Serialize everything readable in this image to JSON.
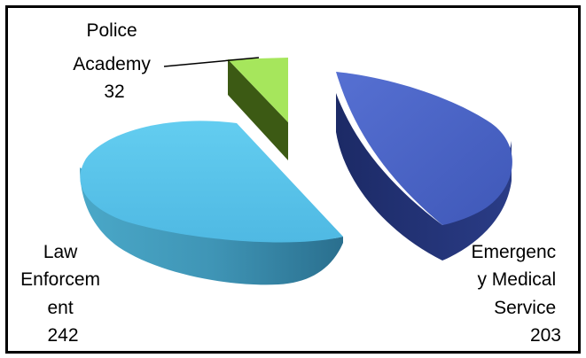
{
  "chart_data": {
    "type": "pie",
    "style": "3d-exploded",
    "categories": [
      "Law Enforcement",
      "Emergency Medical Service",
      "Police Academy"
    ],
    "values": [
      242,
      203,
      32
    ],
    "colors": {
      "Law Enforcement": "#5bc4ea",
      "Emergency Medical Service": "#4a64c8",
      "Police Academy": "#a6e65c"
    },
    "labels": [
      {
        "category": "Police Academy",
        "lines": [
          "Police",
          "Academy",
          "32"
        ]
      },
      {
        "category": "Law Enforcement",
        "lines": [
          "Law",
          "Enforcem",
          "ent",
          "242"
        ]
      },
      {
        "category": "Emergency Medical Service",
        "lines": [
          "Emergenc",
          "y Medical",
          "Service",
          "203"
        ]
      }
    ],
    "legend": "none"
  }
}
